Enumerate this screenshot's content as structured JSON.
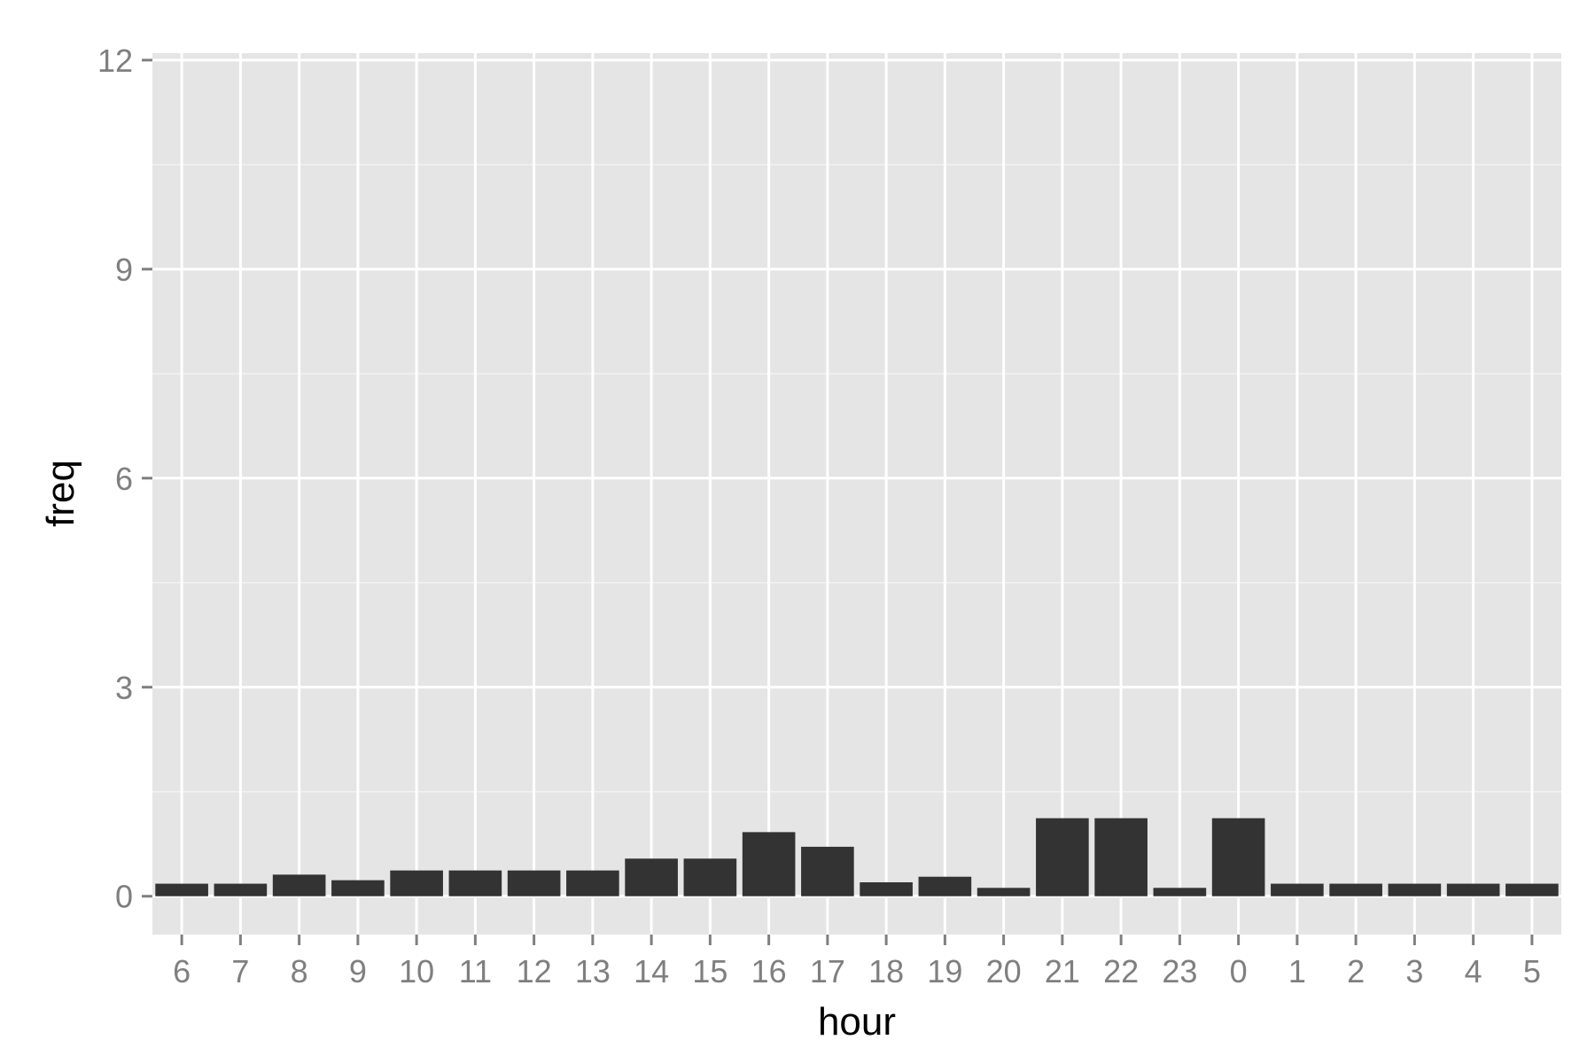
{
  "chart_data": {
    "type": "bar",
    "xlabel": "hour",
    "ylabel": "freq",
    "categories": [
      "6",
      "7",
      "8",
      "9",
      "10",
      "11",
      "12",
      "13",
      "14",
      "15",
      "16",
      "17",
      "18",
      "19",
      "20",
      "21",
      "22",
      "23",
      "0",
      "1",
      "2",
      "3",
      "4",
      "5"
    ],
    "values": [
      0.18,
      0.18,
      0.31,
      0.23,
      0.37,
      0.37,
      0.37,
      0.37,
      0.54,
      0.54,
      0.92,
      0.71,
      0.2,
      0.28,
      0.12,
      1.12,
      1.12,
      0.12,
      1.12,
      0.18,
      0.18,
      0.18,
      0.18,
      0.18
    ],
    "ylim": [
      -0.55,
      12.1
    ],
    "yticks": [
      0,
      3,
      6,
      9,
      12
    ],
    "grid": true,
    "legend": "none",
    "colors": {
      "panel": "#e5e5e5",
      "grid_major": "#ffffff",
      "grid_minor": "#f2f2f2",
      "bar": "#333333",
      "tick_text": "#7f7f7f",
      "axis_title": "#000000"
    }
  }
}
